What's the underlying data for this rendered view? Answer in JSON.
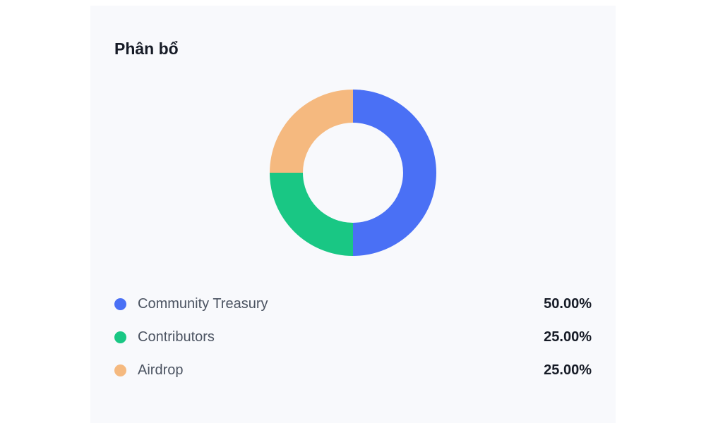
{
  "chart_data": {
    "type": "pie",
    "title": "Phân bổ",
    "donut": true,
    "categories": [
      "Community Treasury",
      "Contributors",
      "Airdrop"
    ],
    "values": [
      50.0,
      25.0,
      25.0
    ],
    "value_labels": [
      "50.00%",
      "25.00%",
      "25.00%"
    ],
    "colors": [
      "#4a70f5",
      "#19c784",
      "#f5b97f"
    ],
    "legend": "bottom"
  }
}
